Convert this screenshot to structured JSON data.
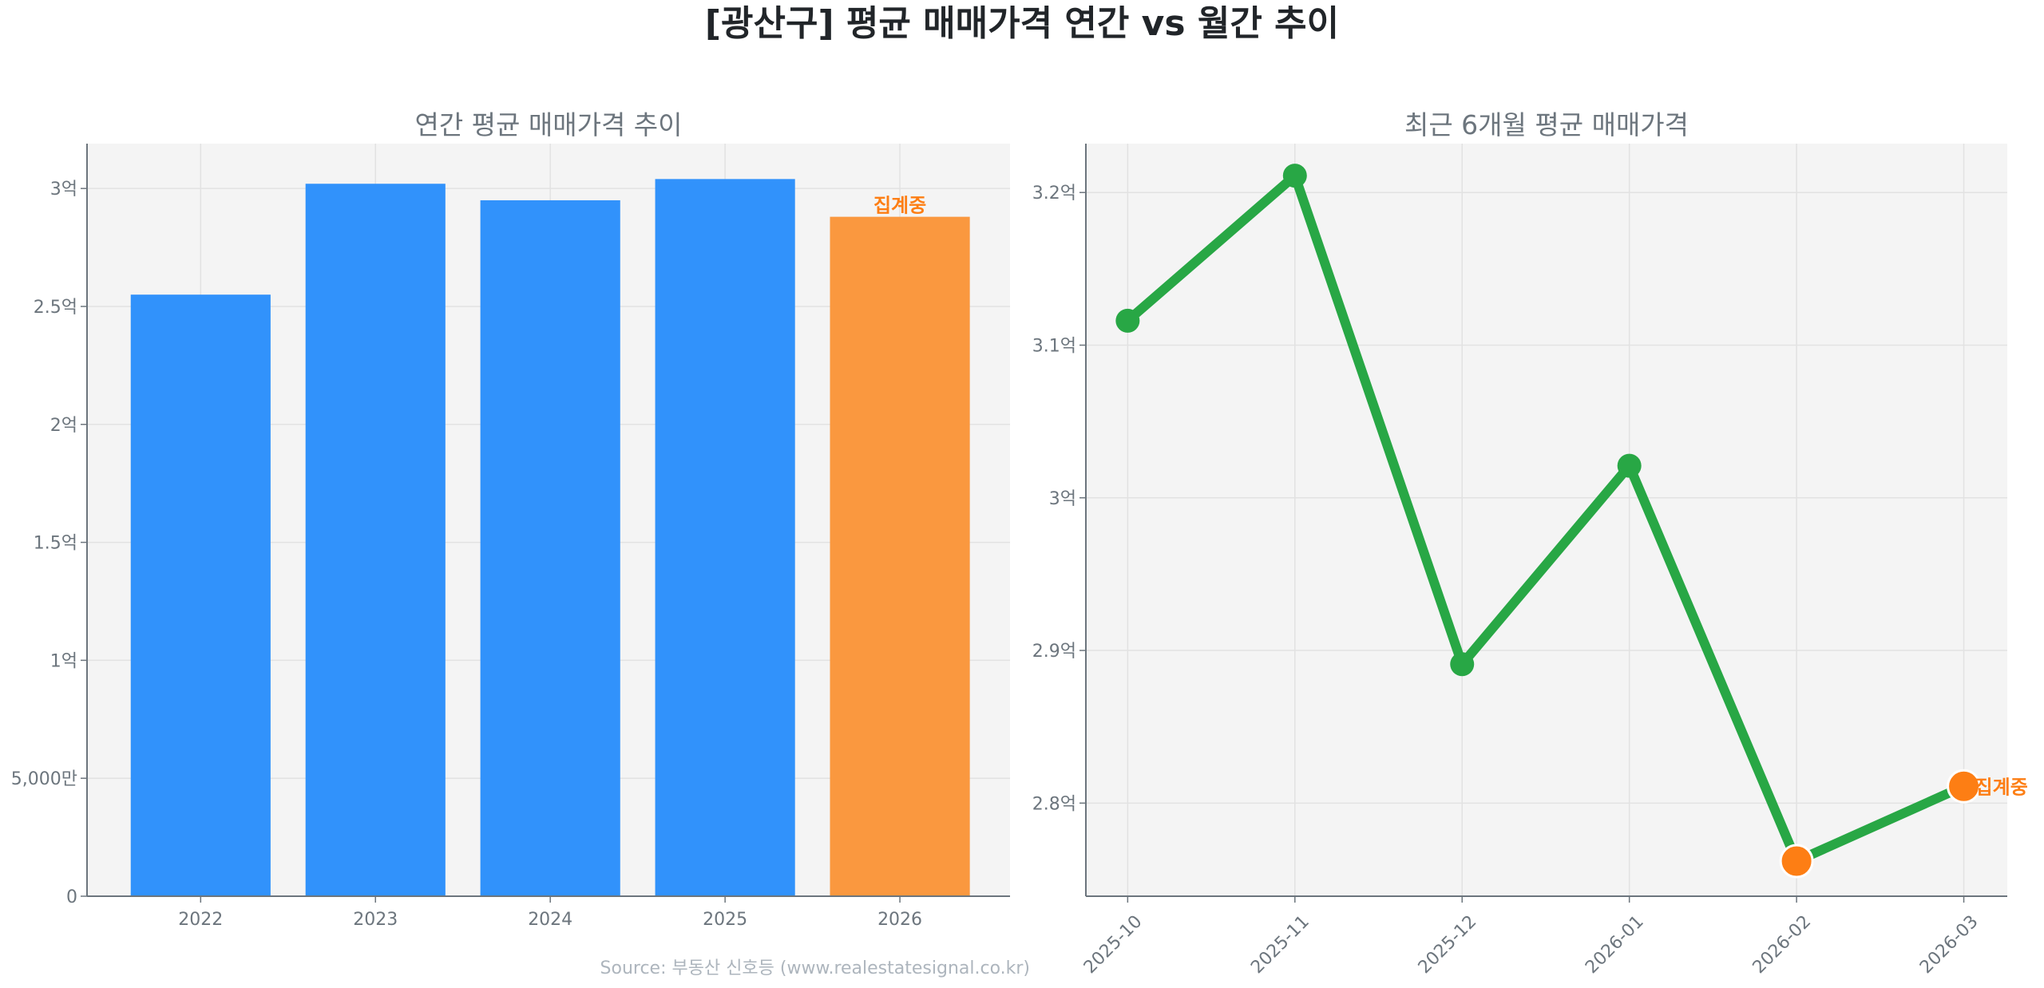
{
  "title": "[광산구] 평균 매매가격 연간 vs 월간 추이",
  "source": "Source: 부동산 신호등 (www.realestatesignal.co.kr)",
  "colors": {
    "bar": "#3192fb",
    "bar_partial": "#fa983f",
    "line": "#28a745",
    "marker_partial": "#fd7e14",
    "annotation": "#fd7e14",
    "plot_bg": "#f4f4f4"
  },
  "chart_data": [
    {
      "type": "bar",
      "title": "연간 평균 매매가격 추이",
      "categories": [
        "2022",
        "2023",
        "2024",
        "2025",
        "2026"
      ],
      "values": [
        2.55,
        3.02,
        2.95,
        3.04,
        2.88
      ],
      "value_unit": "억",
      "partial_flags": [
        false,
        false,
        false,
        false,
        true
      ],
      "annotation": "집계중",
      "ylim": [
        0,
        3.19
      ],
      "yticks": [
        0,
        0.5,
        1,
        1.5,
        2,
        2.5,
        3
      ],
      "ytick_labels": [
        "0",
        "5,000만",
        "1억",
        "1.5억",
        "2억",
        "2.5억",
        "3억"
      ],
      "grid": true
    },
    {
      "type": "line",
      "title": "최근 6개월 평균 매매가격",
      "categories": [
        "2025-10",
        "2025-11",
        "2025-12",
        "2026-01",
        "2026-02",
        "2026-03"
      ],
      "values": [
        3.116,
        3.211,
        2.891,
        3.021,
        2.762,
        2.811
      ],
      "value_unit": "억",
      "partial_flags": [
        false,
        false,
        false,
        false,
        true,
        true
      ],
      "annotation": "집계중",
      "ylim": [
        2.739,
        3.232
      ],
      "yticks": [
        2.8,
        2.9,
        3.0,
        3.1,
        3.2
      ],
      "ytick_labels": [
        "2.8억",
        "2.9억",
        "3억",
        "3.1억",
        "3.2억"
      ],
      "grid": true
    }
  ]
}
